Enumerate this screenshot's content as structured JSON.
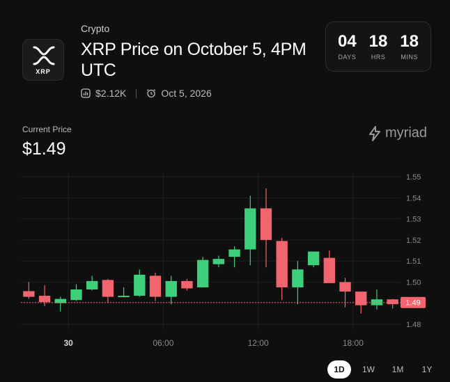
{
  "market": {
    "category": "Crypto",
    "title": "XRP Price on October 5, 4PM UTC",
    "logo_text": "XRP",
    "volume": "$2.12K",
    "date": "Oct 5, 2026"
  },
  "countdown": [
    {
      "value": "04",
      "label": "DAYS"
    },
    {
      "value": "18",
      "label": "HRS"
    },
    {
      "value": "18",
      "label": "MINS"
    }
  ],
  "price": {
    "label": "Current Price",
    "value": "$1.49"
  },
  "brand": {
    "name": "myriad"
  },
  "ranges": [
    "1D",
    "1W",
    "1M",
    "1Y"
  ],
  "active_range": "1D",
  "colors": {
    "up": "#3ecf7a",
    "down": "#f2646e",
    "background": "#0f0f0f"
  },
  "chart_data": {
    "type": "candlestick",
    "ylim": [
      1.477,
      1.552
    ],
    "y_ticks": [
      "1.55",
      "1.54",
      "1.53",
      "1.52",
      "1.51",
      "1.50",
      "1.49",
      "1.48"
    ],
    "y_tick_values": [
      1.55,
      1.54,
      1.53,
      1.52,
      1.51,
      1.5,
      1.49,
      1.48
    ],
    "x_ticks": [
      "30",
      "06:00",
      "12:00",
      "18:00"
    ],
    "x_tick_index": [
      2.5,
      8.5,
      14.5,
      20.5
    ],
    "current_price_label": "1.49",
    "current_price": 1.4903,
    "candles": [
      {
        "o": 1.4957,
        "h": 1.5,
        "l": 1.492,
        "c": 1.493
      },
      {
        "o": 1.4935,
        "h": 1.4985,
        "l": 1.4885,
        "c": 1.4905
      },
      {
        "o": 1.49,
        "h": 1.493,
        "l": 1.486,
        "c": 1.492
      },
      {
        "o": 1.4915,
        "h": 1.499,
        "l": 1.491,
        "c": 1.4965
      },
      {
        "o": 1.4965,
        "h": 1.503,
        "l": 1.496,
        "c": 1.5005
      },
      {
        "o": 1.501,
        "h": 1.5015,
        "l": 1.49,
        "c": 1.493
      },
      {
        "o": 1.4935,
        "h": 1.4975,
        "l": 1.493,
        "c": 1.4935
      },
      {
        "o": 1.4935,
        "h": 1.506,
        "l": 1.493,
        "c": 1.5035
      },
      {
        "o": 1.503,
        "h": 1.5045,
        "l": 1.491,
        "c": 1.493
      },
      {
        "o": 1.493,
        "h": 1.503,
        "l": 1.4895,
        "c": 1.5005
      },
      {
        "o": 1.5005,
        "h": 1.5015,
        "l": 1.496,
        "c": 1.497
      },
      {
        "o": 1.4975,
        "h": 1.512,
        "l": 1.4975,
        "c": 1.5105
      },
      {
        "o": 1.5085,
        "h": 1.5125,
        "l": 1.507,
        "c": 1.511
      },
      {
        "o": 1.512,
        "h": 1.517,
        "l": 1.507,
        "c": 1.5155
      },
      {
        "o": 1.5155,
        "h": 1.541,
        "l": 1.508,
        "c": 1.535
      },
      {
        "o": 1.535,
        "h": 1.5445,
        "l": 1.507,
        "c": 1.52
      },
      {
        "o": 1.5195,
        "h": 1.521,
        "l": 1.4915,
        "c": 1.4975
      },
      {
        "o": 1.4975,
        "h": 1.51,
        "l": 1.4895,
        "c": 1.506
      },
      {
        "o": 1.508,
        "h": 1.5145,
        "l": 1.507,
        "c": 1.5145
      },
      {
        "o": 1.5115,
        "h": 1.515,
        "l": 1.4995,
        "c": 1.4995
      },
      {
        "o": 1.5,
        "h": 1.502,
        "l": 1.488,
        "c": 1.4955
      },
      {
        "o": 1.4955,
        "h": 1.4955,
        "l": 1.485,
        "c": 1.489
      },
      {
        "o": 1.489,
        "h": 1.4965,
        "l": 1.487,
        "c": 1.4918
      },
      {
        "o": 1.4918,
        "h": 1.492,
        "l": 1.4875,
        "c": 1.4895
      }
    ]
  }
}
